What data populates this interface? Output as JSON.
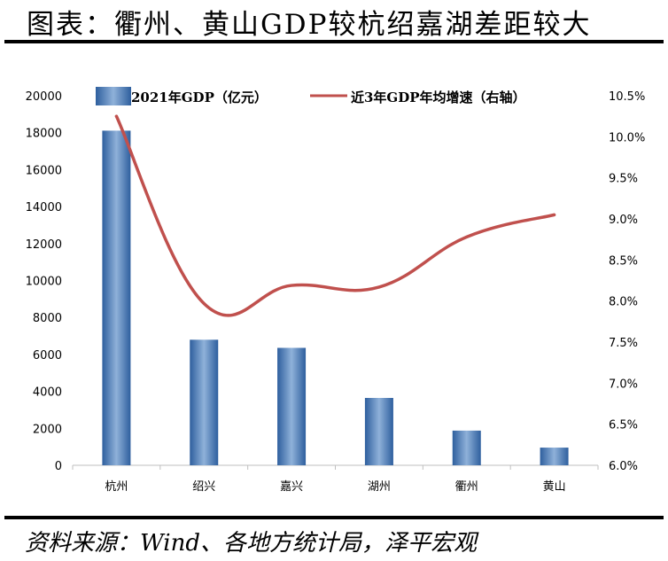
{
  "title": "图表：衢州、黄山GDP较杭绍嘉湖差距较大",
  "source": "资料来源：Wind、各地方统计局，泽平宏观",
  "chart_data": {
    "type": "bar+line",
    "title": "图表：衢州、黄山GDP较杭绍嘉湖差距较大",
    "categories": [
      "杭州",
      "绍兴",
      "嘉兴",
      "湖州",
      "衢州",
      "黄山"
    ],
    "series": [
      {
        "name": "2021年GDP（亿元）",
        "type": "bar",
        "axis": "left",
        "color": "#4f81bd",
        "values": [
          18109,
          6795,
          6355,
          3645,
          1876,
          957
        ]
      },
      {
        "name": "近3年GDP年均增速（右轴）",
        "type": "line",
        "axis": "right",
        "color": "#c0504d",
        "values": [
          10.25,
          7.97,
          8.19,
          8.17,
          8.78,
          9.05
        ]
      }
    ],
    "y_left": {
      "min": 0,
      "max": 20000,
      "step": 2000,
      "ticks": [
        "0",
        "2000",
        "4000",
        "6000",
        "8000",
        "10000",
        "12000",
        "14000",
        "16000",
        "18000",
        "20000"
      ]
    },
    "y_right": {
      "min": 6.0,
      "max": 10.5,
      "step": 0.5,
      "ticks": [
        "6.0%",
        "6.5%",
        "7.0%",
        "7.5%",
        "8.0%",
        "8.5%",
        "9.0%",
        "9.5%",
        "10.0%",
        "10.5%"
      ]
    },
    "legend_position": "top"
  }
}
